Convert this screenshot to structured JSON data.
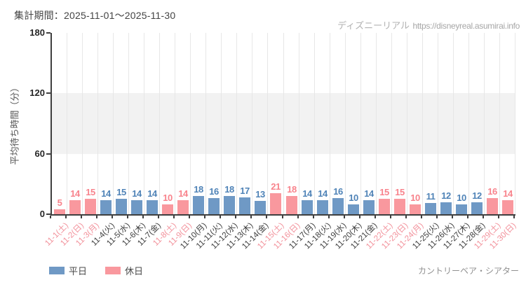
{
  "header": {
    "period_label": "集計期間：2025-11-01～2025-11-30"
  },
  "watermark": {
    "brand": "ディズニーリアル",
    "url": "https://disneyreal.asumirai.info"
  },
  "legend": {
    "weekday": "平日",
    "holiday": "休日"
  },
  "footer": {
    "attraction": "カントリーベア・シアター"
  },
  "chart_data": {
    "type": "bar",
    "title": "集計期間：2025-11-01～2025-11-30",
    "ylabel": "平均待ち時間（分）",
    "xlabel": "",
    "ylim": [
      0,
      180
    ],
    "yticks": [
      0,
      60,
      120,
      180
    ],
    "shaded_band_y": [
      60,
      120
    ],
    "grid": "vertical category-boundary gridlines; light gray band between y=60 and y=120",
    "legend_position": "bottom-left",
    "categories": [
      "11-1(土)",
      "11-2(日)",
      "11-3(月)",
      "11-4(火)",
      "11-5(水)",
      "11-6(木)",
      "11-7(金)",
      "11-8(土)",
      "11-9(日)",
      "11-10(月)",
      "11-11(火)",
      "11-12(水)",
      "11-13(木)",
      "11-14(金)",
      "11-15(土)",
      "11-16(日)",
      "11-17(月)",
      "11-18(火)",
      "11-19(水)",
      "11-20(木)",
      "11-21(金)",
      "11-22(土)",
      "11-23(日)",
      "11-24(月)",
      "11-25(火)",
      "11-26(水)",
      "11-27(木)",
      "11-28(金)",
      "11-29(土)",
      "11-30(日)"
    ],
    "values": [
      5,
      14,
      15,
      14,
      15,
      14,
      14,
      10,
      14,
      18,
      16,
      18,
      17,
      13,
      21,
      18,
      14,
      14,
      16,
      10,
      14,
      15,
      15,
      10,
      11,
      12,
      10,
      12,
      16,
      14
    ],
    "day_types": [
      "holiday",
      "holiday",
      "holiday",
      "weekday",
      "weekday",
      "weekday",
      "weekday",
      "holiday",
      "holiday",
      "weekday",
      "weekday",
      "weekday",
      "weekday",
      "weekday",
      "holiday",
      "holiday",
      "weekday",
      "weekday",
      "weekday",
      "weekday",
      "weekday",
      "holiday",
      "holiday",
      "holiday",
      "weekday",
      "weekday",
      "weekday",
      "weekday",
      "holiday",
      "holiday"
    ],
    "colors": {
      "weekday_bar": "#6f99c5",
      "holiday_bar": "#f9989e",
      "weekday_value_label": "#4f83b7",
      "holiday_value_label": "#f8838c",
      "weekday_tick_label": "#3d3d3d",
      "holiday_tick_label": "#f2909a",
      "axis": "#3f3f3f",
      "gridline": "#e7e7e7",
      "band": "#f2f2f2"
    }
  }
}
